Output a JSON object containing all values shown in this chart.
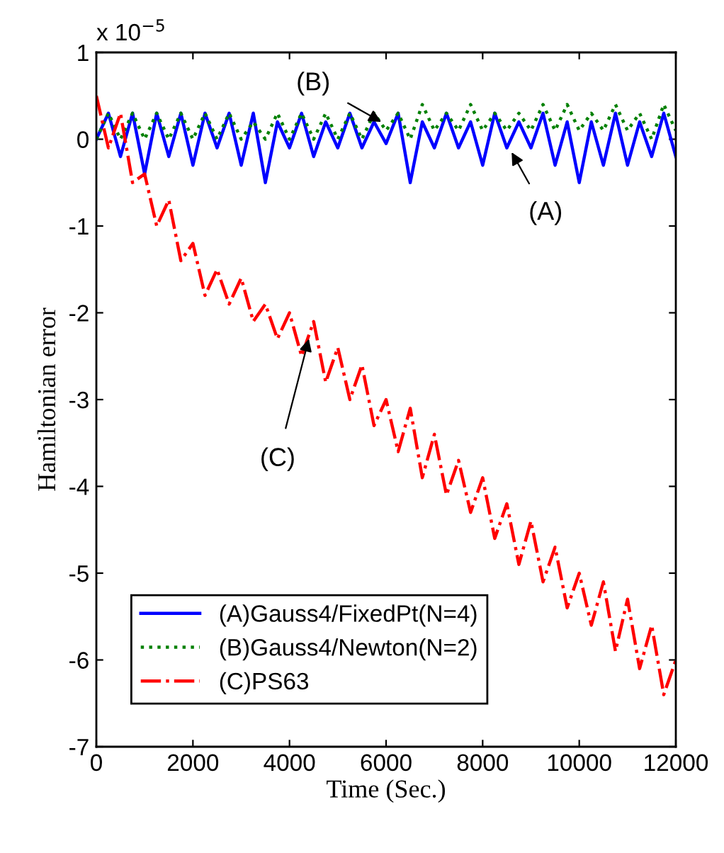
{
  "chart_data": {
    "type": "line",
    "xlabel": "Time (Sec.)",
    "ylabel": "Hamiltonian error",
    "xlim": [
      0,
      12000
    ],
    "xticks": [
      0,
      2000,
      4000,
      6000,
      8000,
      10000,
      12000
    ],
    "ylim": [
      -7,
      1
    ],
    "yticks": [
      -7,
      -6,
      -5,
      -4,
      -3,
      -2,
      -1,
      0,
      1
    ],
    "x": [
      0,
      250,
      500,
      750,
      1000,
      1250,
      1500,
      1750,
      2000,
      2250,
      2500,
      2750,
      3000,
      3250,
      3500,
      3750,
      4000,
      4250,
      4500,
      4750,
      5000,
      5250,
      5500,
      5750,
      6000,
      6250,
      6500,
      6750,
      7000,
      7250,
      7500,
      7750,
      8000,
      8250,
      8500,
      8750,
      9000,
      9250,
      9500,
      9750,
      10000,
      10250,
      10500,
      10750,
      11000,
      11250,
      11500,
      11750,
      12000
    ],
    "series": [
      {
        "name": "(A)Gauss4/FixedPt(N=4)",
        "color": "#0000ff",
        "line_style": "solid",
        "values": [
          0.0,
          0.3,
          -0.2,
          0.3,
          -0.4,
          0.3,
          -0.2,
          0.3,
          -0.3,
          0.3,
          -0.1,
          0.3,
          -0.3,
          0.3,
          -0.5,
          0.2,
          -0.1,
          0.3,
          -0.2,
          0.2,
          -0.1,
          0.3,
          -0.1,
          0.2,
          -0.05,
          0.3,
          -0.5,
          0.2,
          -0.1,
          0.3,
          -0.1,
          0.2,
          -0.3,
          0.3,
          -0.1,
          0.2,
          -0.1,
          0.3,
          -0.3,
          0.2,
          -0.5,
          0.2,
          -0.3,
          0.3,
          -0.3,
          0.2,
          -0.2,
          0.3,
          -0.2
        ]
      },
      {
        "name": "(B)Gauss4/Newton(N=2)",
        "color": "#008000",
        "line_style": "dotted",
        "values": [
          0.0,
          0.3,
          0.0,
          0.3,
          0.0,
          0.3,
          0.0,
          0.3,
          0.0,
          0.3,
          0.0,
          0.3,
          0.0,
          0.2,
          0.0,
          0.3,
          0.0,
          0.3,
          0.0,
          0.3,
          0.0,
          0.3,
          0.0,
          0.3,
          0.1,
          0.3,
          0.0,
          0.4,
          0.1,
          0.3,
          0.1,
          0.4,
          0.1,
          0.3,
          0.1,
          0.3,
          0.1,
          0.4,
          0.1,
          0.4,
          0.1,
          0.3,
          0.1,
          0.4,
          0.1,
          0.3,
          0.0,
          0.4,
          0.1
        ]
      },
      {
        "name": "(C)PS63",
        "color": "#ff0000",
        "line_style": "dashdot",
        "values": [
          0.5,
          -0.1,
          0.3,
          -0.5,
          -0.4,
          -1.0,
          -0.7,
          -1.4,
          -1.2,
          -1.8,
          -1.5,
          -1.9,
          -1.6,
          -2.1,
          -1.9,
          -2.3,
          -2.0,
          -2.5,
          -2.1,
          -2.8,
          -2.4,
          -3.0,
          -2.6,
          -3.3,
          -3.0,
          -3.6,
          -3.1,
          -3.9,
          -3.4,
          -4.1,
          -3.7,
          -4.3,
          -3.9,
          -4.6,
          -4.2,
          -4.9,
          -4.4,
          -5.1,
          -4.7,
          -5.4,
          -5.0,
          -5.6,
          -5.1,
          -5.9,
          -5.3,
          -6.1,
          -5.6,
          -6.4,
          -6.0
        ]
      }
    ],
    "annotations": [
      "x 10$^{−5}$",
      {
        "text": "(B)",
        "x": 5900,
        "y": 0.2
      },
      {
        "text": "(A)",
        "x": 8600,
        "y": -0.15
      },
      {
        "text": "(C)",
        "x": 4400,
        "y": -2.3
      }
    ],
    "legend": "bottom left",
    "grid": false,
    "marker": "none"
  }
}
